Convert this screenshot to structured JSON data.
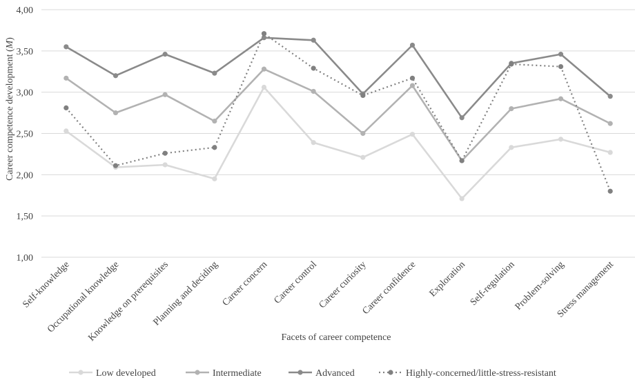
{
  "chart_data": {
    "type": "line",
    "title": "",
    "xlabel": "Facets of career competence",
    "ylabel_prefix": "Career competence development (",
    "ylabel_italic": "M",
    "ylabel_suffix": ")",
    "ylim": [
      1.0,
      4.0
    ],
    "yticks": [
      1.0,
      1.5,
      2.0,
      2.5,
      3.0,
      3.5,
      4.0
    ],
    "ytick_labels": [
      "1,00",
      "1,50",
      "2,00",
      "2,50",
      "3,00",
      "3,50",
      "4,00"
    ],
    "grid": true,
    "legend_position": "bottom",
    "categories": [
      "Self-knowledge",
      "Occupational knowledge",
      "Knowledge on prerequisites",
      "Planning and deciding",
      "Career concern",
      "Career control",
      "Career curiosity",
      "Career confidence",
      "Exploration",
      "Self-regulation",
      "Problem-solving",
      "Stress management"
    ],
    "series": [
      {
        "name": "Low developed",
        "color": "#d9d9d9",
        "dashed": false,
        "values": [
          2.53,
          2.09,
          2.12,
          1.95,
          3.06,
          2.39,
          2.21,
          2.49,
          1.71,
          2.33,
          2.43,
          2.27
        ]
      },
      {
        "name": "Intermediate",
        "color": "#b2b2b2",
        "dashed": false,
        "values": [
          3.17,
          2.75,
          2.97,
          2.65,
          3.28,
          3.01,
          2.5,
          3.08,
          2.17,
          2.8,
          2.92,
          2.62
        ]
      },
      {
        "name": "Advanced",
        "color": "#8a8a8a",
        "dashed": false,
        "values": [
          3.55,
          3.2,
          3.46,
          3.23,
          3.66,
          3.63,
          2.98,
          3.57,
          2.69,
          3.35,
          3.46,
          2.95
        ]
      },
      {
        "name": "Highly-concerned/little-stress-resistant",
        "color": "#808080",
        "dashed": true,
        "values": [
          2.81,
          2.11,
          2.26,
          2.33,
          3.71,
          3.29,
          2.96,
          3.17,
          2.17,
          3.34,
          3.31,
          1.8
        ]
      }
    ]
  }
}
